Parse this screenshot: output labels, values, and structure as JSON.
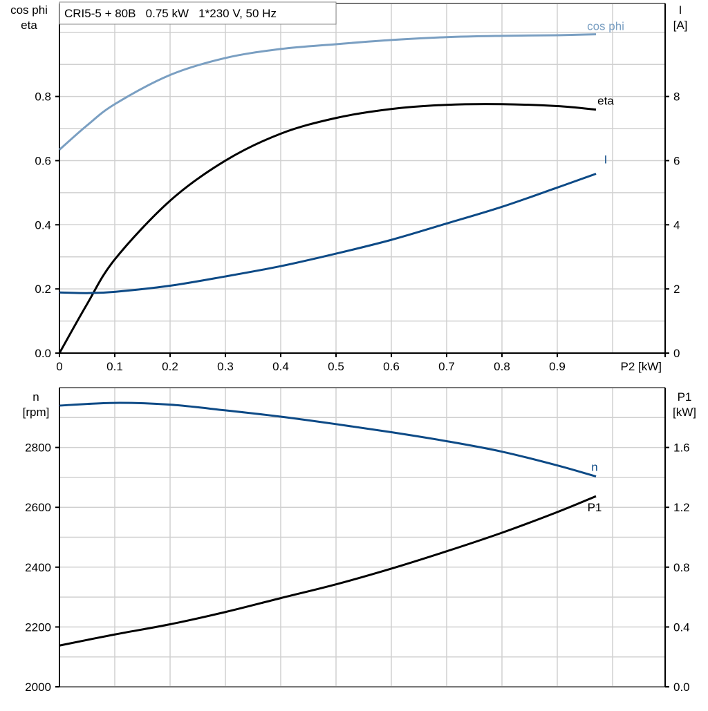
{
  "title": "CRI5-5 + 80B   0.75 kW   1*230 V, 50 Hz",
  "chart_data": [
    {
      "type": "line",
      "xlabel": "P2 [kW]",
      "xlim": [
        0,
        1.095
      ],
      "xticks": [
        "0",
        "0.1",
        "0.2",
        "0.3",
        "0.4",
        "0.5",
        "0.6",
        "0.7",
        "0.8",
        "0.9"
      ],
      "ylabel_left": [
        "cos phi",
        "eta"
      ],
      "ylim_left": [
        0,
        1.09
      ],
      "yticks_left": [
        "0.0",
        "0.2",
        "0.4",
        "0.6",
        "0.8"
      ],
      "ylabel_right": [
        "I",
        "[A]"
      ],
      "ylim_right": [
        0,
        10.9
      ],
      "yticks_right": [
        "0",
        "2",
        "4",
        "6",
        "8"
      ],
      "grid": true,
      "x": [
        0,
        0.05,
        0.1,
        0.2,
        0.3,
        0.4,
        0.5,
        0.6,
        0.7,
        0.8,
        0.9,
        0.97
      ],
      "series": [
        {
          "name": "cos phi",
          "axis": "left",
          "color": "#7a9fc2",
          "values": [
            0.634,
            0.71,
            0.776,
            0.867,
            0.92,
            0.948,
            0.963,
            0.976,
            0.985,
            0.989,
            0.991,
            0.994
          ]
        },
        {
          "name": "eta",
          "axis": "left",
          "color": "#000000",
          "values": [
            0.0,
            0.153,
            0.292,
            0.475,
            0.6,
            0.684,
            0.733,
            0.761,
            0.774,
            0.776,
            0.77,
            0.759
          ]
        },
        {
          "name": "I",
          "axis": "right",
          "color": "#0d4a86",
          "values": [
            1.89,
            1.87,
            1.91,
            2.1,
            2.39,
            2.71,
            3.1,
            3.53,
            4.04,
            4.56,
            5.16,
            5.59
          ]
        }
      ]
    },
    {
      "type": "line",
      "xlim": [
        0,
        1.095
      ],
      "ylabel_left": [
        "n",
        "[rpm]"
      ],
      "ylim_left": [
        2000,
        3000
      ],
      "yticks_left": [
        "2000",
        "2200",
        "2400",
        "2600",
        "2800"
      ],
      "ylabel_right": [
        "P1",
        "[kW]"
      ],
      "ylim_right": [
        0,
        2.0
      ],
      "yticks_right": [
        "0.0",
        "0.4",
        "0.8",
        "1.2",
        "1.6"
      ],
      "grid": true,
      "x": [
        0,
        0.1,
        0.2,
        0.3,
        0.4,
        0.5,
        0.6,
        0.7,
        0.8,
        0.9,
        0.97
      ],
      "series": [
        {
          "name": "n",
          "axis": "left",
          "color": "#0d4a86",
          "values": [
            2940,
            2949,
            2943,
            2924,
            2903,
            2878,
            2851,
            2821,
            2786,
            2740,
            2703
          ]
        },
        {
          "name": "P1",
          "axis": "right",
          "color": "#000000",
          "values": [
            0.276,
            0.35,
            0.418,
            0.5,
            0.593,
            0.685,
            0.79,
            0.906,
            1.03,
            1.168,
            1.274
          ]
        }
      ]
    }
  ]
}
